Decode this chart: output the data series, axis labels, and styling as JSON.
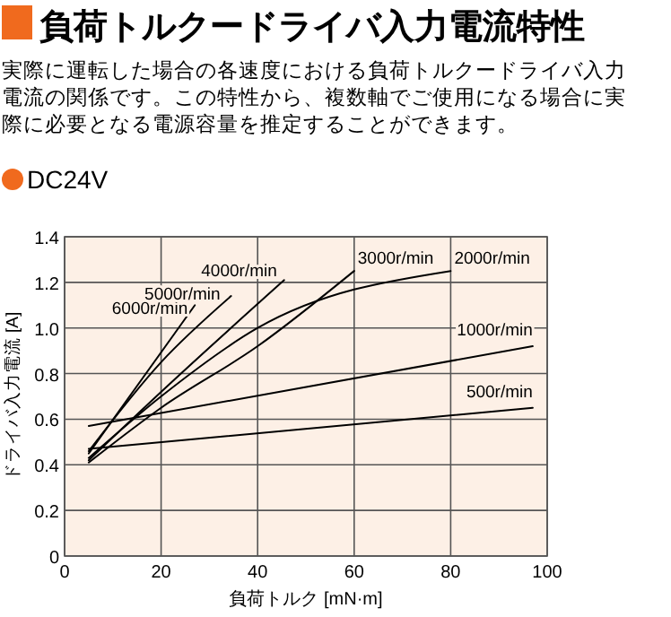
{
  "chart_data": {
    "type": "line",
    "title": "負荷トルクードライバ入力電流特性",
    "subtitle": "実際に運転した場合の各速度における負荷トルクードライバ入力電流の関係です。この特性から、複数軸でご使用になる場合に実際に必要となる電源容量を推定することができます。",
    "annotations": [
      "DC24V"
    ],
    "xlabel": "負荷トルク [mN·m]",
    "ylabel": "ドライバ入力電流 [A]",
    "xlim": [
      0,
      100
    ],
    "xticks": [
      0,
      20,
      40,
      60,
      80,
      100
    ],
    "ylim": [
      0,
      1.4
    ],
    "yticks": [
      0,
      0.2,
      0.4,
      0.6,
      0.8,
      {
        "value": 1,
        "label": "1.0"
      },
      1.2,
      1.4
    ],
    "grid": true,
    "marker": "none",
    "line_style": "solid",
    "series": [
      {
        "name": "6000r/min",
        "color": "#000000",
        "x": [
          5,
          27
        ],
        "values": [
          0.45,
          1.1
        ]
      },
      {
        "name": "5000r/min",
        "color": "#000000",
        "x": [
          5,
          20,
          34.5
        ],
        "values": [
          0.46,
          0.85,
          1.14
        ]
      },
      {
        "name": "4000r/min",
        "color": "#000000",
        "x": [
          5,
          20,
          45.5
        ],
        "values": [
          0.42,
          0.72,
          1.21
        ]
      },
      {
        "name": "3000r/min",
        "color": "#000000",
        "x": [
          5,
          20,
          40,
          60
        ],
        "values": [
          0.41,
          0.65,
          0.92,
          1.25
        ]
      },
      {
        "name": "2000r/min",
        "color": "#000000",
        "x": [
          5,
          20,
          40,
          80
        ],
        "values": [
          0.43,
          0.7,
          1.0,
          1.25
        ]
      },
      {
        "name": "1000r/min",
        "color": "#000000",
        "x": [
          5,
          97
        ],
        "values": [
          0.57,
          0.92
        ]
      },
      {
        "name": "500r/min",
        "color": "#000000",
        "x": [
          5,
          97
        ],
        "values": [
          0.47,
          0.65
        ]
      }
    ]
  }
}
